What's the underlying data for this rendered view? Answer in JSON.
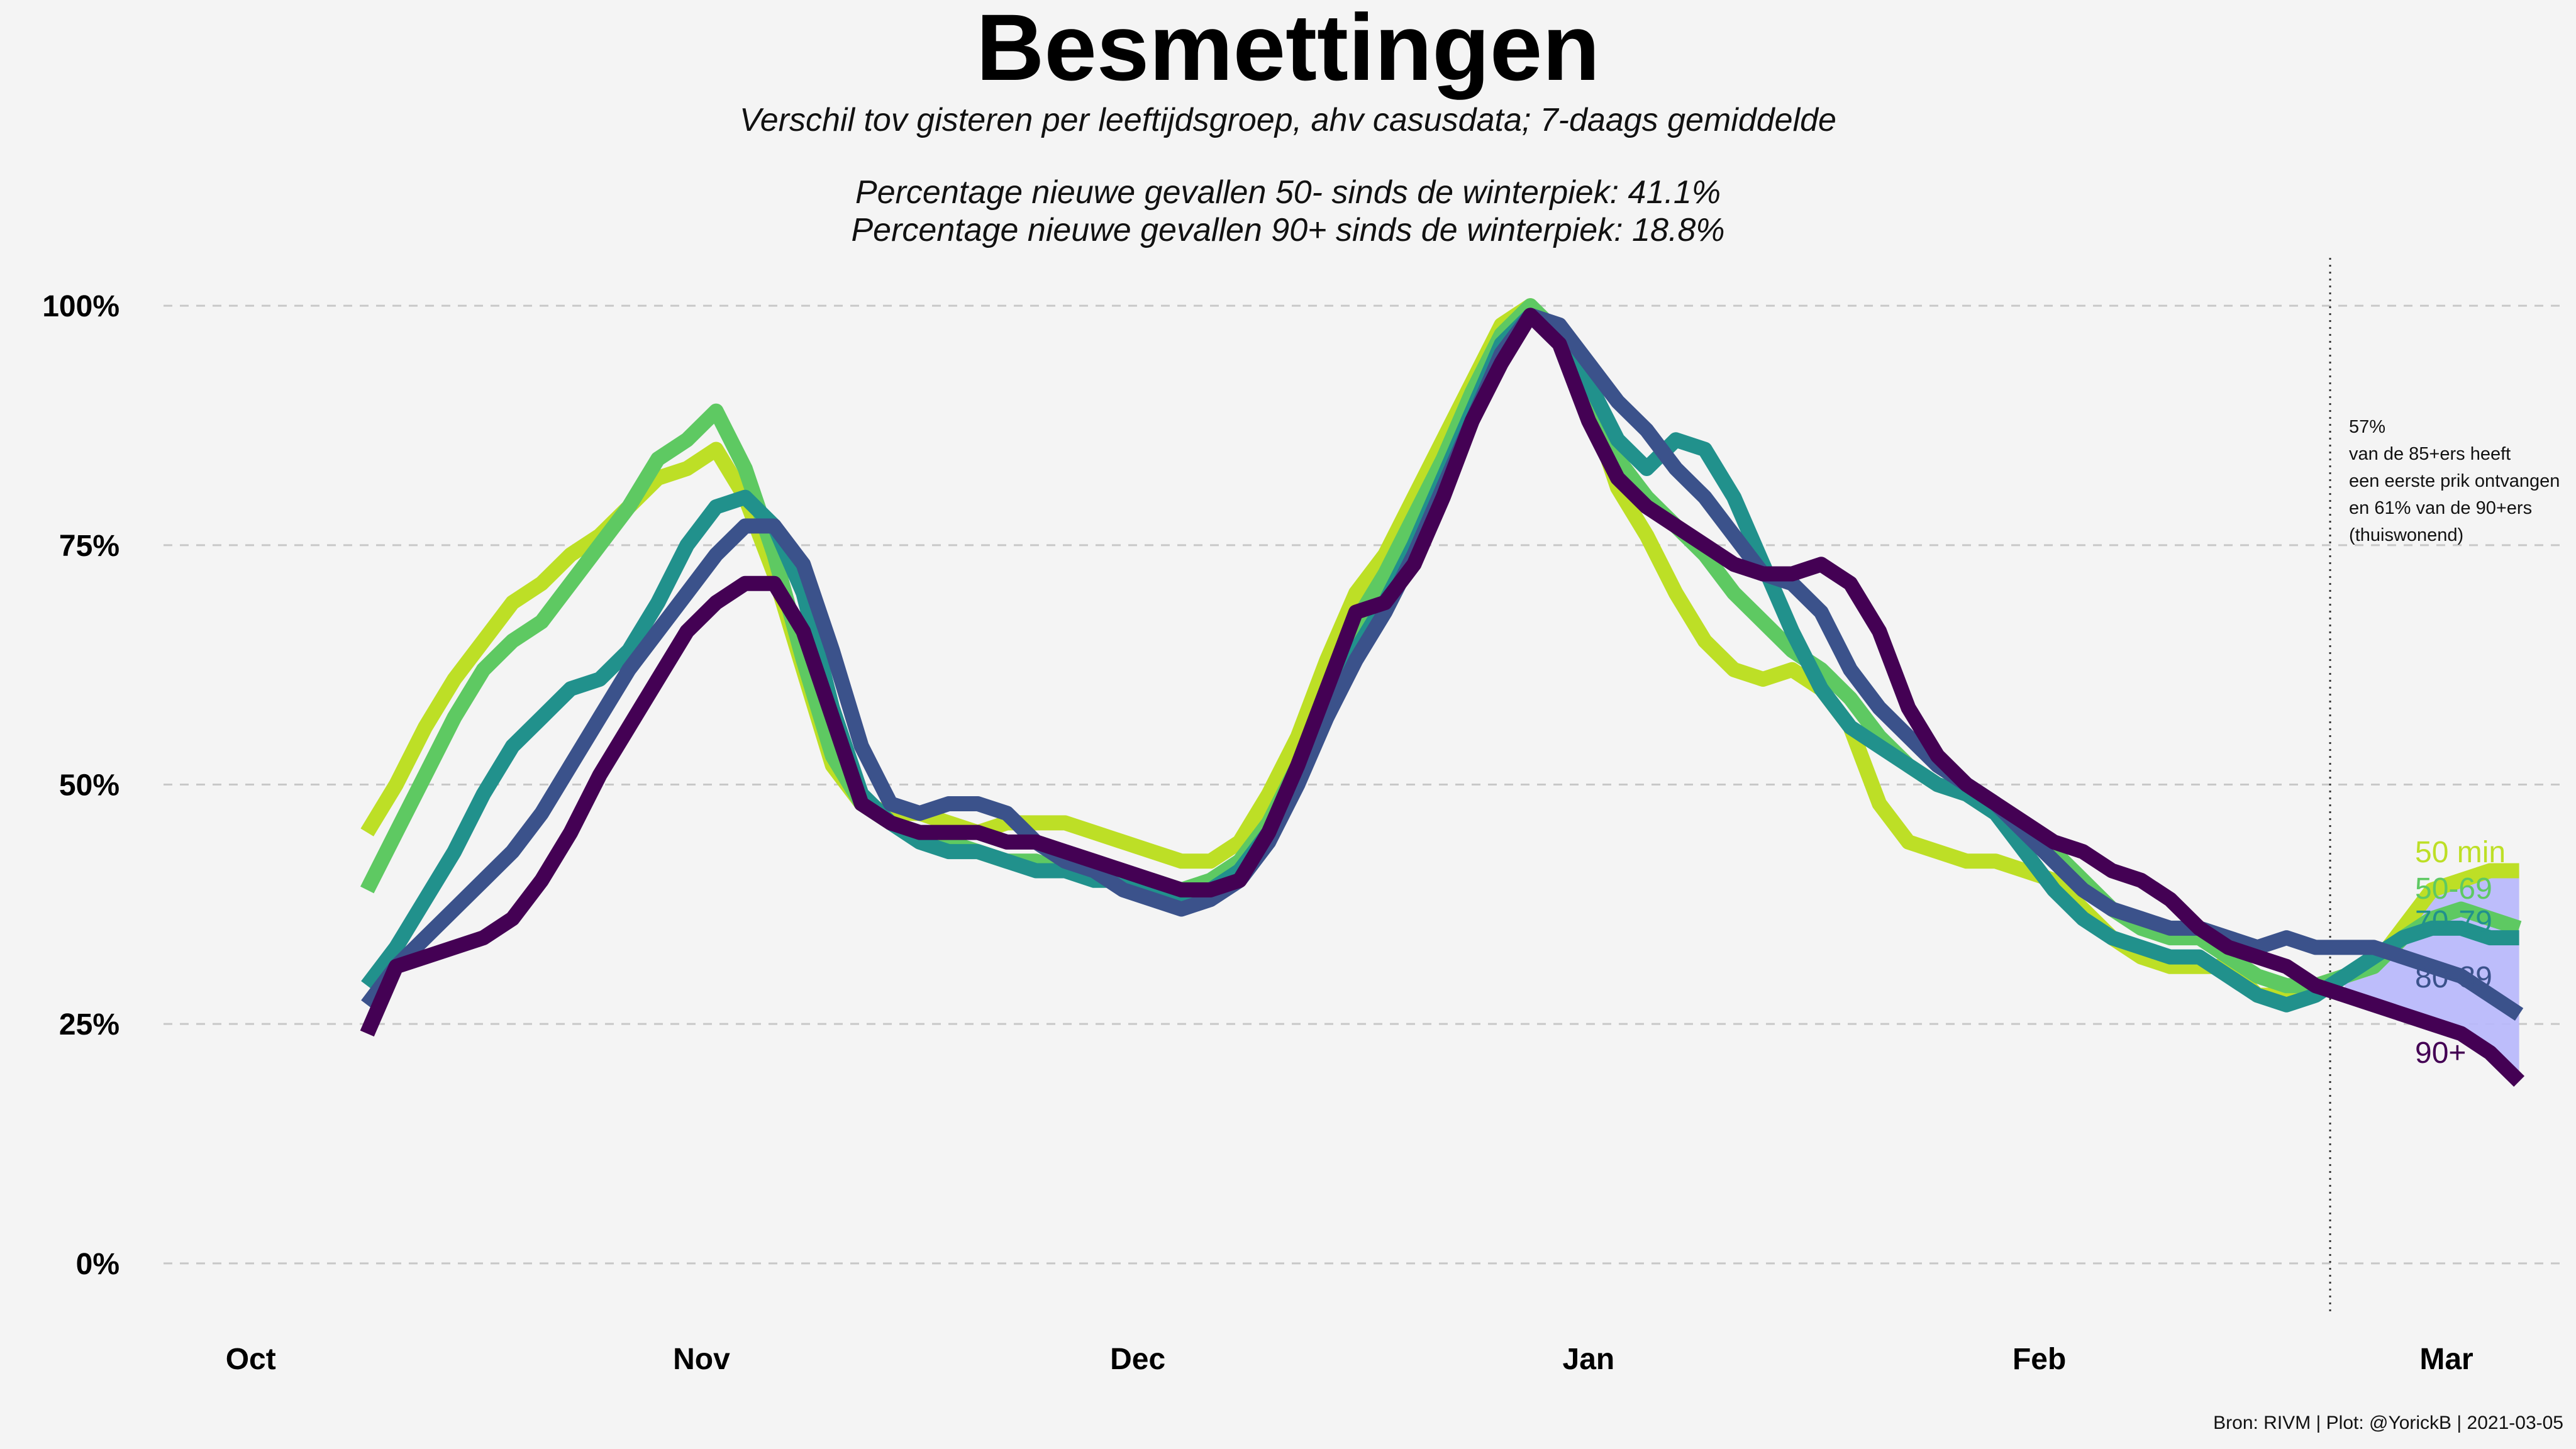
{
  "title": "Besmettingen",
  "subtitle": "Verschil tov gisteren per leeftijdsgroep, ahv casusdata; 7-daags gemiddelde",
  "lines": [
    "Percentage nieuwe gevallen 50- sinds de winterpiek: 41.1%",
    "Percentage nieuwe gevallen 90+ sinds de winterpiek: 18.8%"
  ],
  "caption": "Bron: RIVM | Plot: @YorickB  |  2021-03-05",
  "annotation": [
    "57%",
    "van de 85+ers heeft",
    "een eerste prik ontvangen",
    "en 61% van de 90+ers",
    "(thuiswonend)"
  ],
  "chart_data": {
    "type": "line",
    "title": "Besmettingen",
    "xlabel": "",
    "ylabel": "",
    "x_unit": "days since 2020-10-01",
    "xlim": [
      -6,
      159
    ],
    "ylim": [
      -5,
      105
    ],
    "y_ticks": [
      0,
      25,
      50,
      75,
      100
    ],
    "y_tick_labels": [
      "0%",
      "25%",
      "50%",
      "75%",
      "100%"
    ],
    "x_ticks": [
      0,
      31,
      61,
      92,
      123,
      151
    ],
    "x_tick_labels": [
      "Oct",
      "Nov",
      "Dec",
      "Jan",
      "Feb",
      "Mar"
    ],
    "vline_x": 143,
    "series": [
      {
        "name": "50 min",
        "color": "#bddf26",
        "x": [
          8,
          10,
          12,
          14,
          16,
          18,
          20,
          22,
          24,
          26,
          28,
          30,
          32,
          34,
          36,
          38,
          40,
          42,
          44,
          46,
          48,
          50,
          52,
          54,
          56,
          58,
          60,
          62,
          64,
          66,
          68,
          70,
          72,
          74,
          76,
          78,
          80,
          82,
          84,
          86,
          88,
          90,
          92,
          94,
          96,
          98,
          100,
          102,
          104,
          106,
          108,
          110,
          112,
          114,
          116,
          118,
          120,
          122,
          124,
          126,
          128,
          130,
          132,
          134,
          136,
          138,
          140,
          142,
          144,
          146,
          148,
          150,
          152,
          154,
          156
        ],
        "y": [
          45,
          50,
          56,
          61,
          65,
          69,
          71,
          74,
          76,
          79,
          82,
          83,
          85,
          80,
          72,
          62,
          52,
          48,
          47,
          47,
          46,
          45,
          46,
          46,
          46,
          45,
          44,
          43,
          42,
          42,
          44,
          49,
          55,
          63,
          70,
          74,
          80,
          86,
          92,
          98,
          100,
          96,
          90,
          81,
          76,
          70,
          65,
          62,
          61,
          62,
          60,
          56,
          48,
          44,
          43,
          42,
          42,
          41,
          40,
          37,
          34,
          32,
          31,
          31,
          31,
          28,
          28,
          29,
          30,
          31,
          35,
          39,
          40,
          41,
          41
        ]
      },
      {
        "name": "50-69",
        "color": "#5ec962",
        "x": [
          8,
          10,
          12,
          14,
          16,
          18,
          20,
          22,
          24,
          26,
          28,
          30,
          32,
          34,
          36,
          38,
          40,
          42,
          44,
          46,
          48,
          50,
          52,
          54,
          56,
          58,
          60,
          62,
          64,
          66,
          68,
          70,
          72,
          74,
          76,
          78,
          80,
          82,
          84,
          86,
          88,
          90,
          92,
          94,
          96,
          98,
          100,
          102,
          104,
          106,
          108,
          110,
          112,
          114,
          116,
          118,
          120,
          122,
          124,
          126,
          128,
          130,
          132,
          134,
          136,
          138,
          140,
          142,
          144,
          146,
          148,
          150,
          152,
          154,
          156
        ],
        "y": [
          39,
          45,
          51,
          57,
          62,
          65,
          67,
          71,
          75,
          79,
          84,
          86,
          89,
          83,
          74,
          63,
          53,
          48,
          46,
          45,
          44,
          43,
          42,
          42,
          41,
          41,
          40,
          40,
          39,
          40,
          42,
          46,
          52,
          60,
          67,
          72,
          78,
          84,
          91,
          97,
          100,
          97,
          91,
          84,
          80,
          77,
          74,
          70,
          67,
          64,
          62,
          59,
          55,
          52,
          50,
          49,
          47,
          45,
          43,
          40,
          37,
          35,
          34,
          34,
          32,
          30,
          29,
          29,
          30,
          31,
          34,
          36,
          37,
          36,
          35
        ]
      },
      {
        "name": "70-79",
        "color": "#21918c",
        "x": [
          8,
          10,
          12,
          14,
          16,
          18,
          20,
          22,
          24,
          26,
          28,
          30,
          32,
          34,
          36,
          38,
          40,
          42,
          44,
          46,
          48,
          50,
          52,
          54,
          56,
          58,
          60,
          62,
          64,
          66,
          68,
          70,
          72,
          74,
          76,
          78,
          80,
          82,
          84,
          86,
          88,
          90,
          92,
          94,
          96,
          98,
          100,
          102,
          104,
          106,
          108,
          110,
          112,
          114,
          116,
          118,
          120,
          122,
          124,
          126,
          128,
          130,
          132,
          134,
          136,
          138,
          140,
          142,
          144,
          146,
          148,
          150,
          152,
          154,
          156
        ],
        "y": [
          29,
          33,
          38,
          43,
          49,
          54,
          57,
          60,
          61,
          64,
          69,
          75,
          79,
          80,
          77,
          70,
          58,
          49,
          46,
          44,
          43,
          43,
          42,
          41,
          41,
          40,
          40,
          39,
          38,
          39,
          41,
          45,
          51,
          58,
          64,
          69,
          75,
          82,
          89,
          96,
          99,
          97,
          92,
          86,
          83,
          86,
          85,
          80,
          73,
          66,
          60,
          56,
          54,
          52,
          50,
          49,
          47,
          43,
          39,
          36,
          34,
          33,
          32,
          32,
          30,
          28,
          27,
          28,
          30,
          32,
          34,
          35,
          35,
          34,
          34
        ]
      },
      {
        "name": "80-89",
        "color": "#3b528b",
        "x": [
          8,
          10,
          12,
          14,
          16,
          18,
          20,
          22,
          24,
          26,
          28,
          30,
          32,
          34,
          36,
          38,
          40,
          42,
          44,
          46,
          48,
          50,
          52,
          54,
          56,
          58,
          60,
          62,
          64,
          66,
          68,
          70,
          72,
          74,
          76,
          78,
          80,
          82,
          84,
          86,
          88,
          90,
          92,
          94,
          96,
          98,
          100,
          102,
          104,
          106,
          108,
          110,
          112,
          114,
          116,
          118,
          120,
          122,
          124,
          126,
          128,
          130,
          132,
          134,
          136,
          138,
          140,
          142,
          144,
          146,
          148,
          150,
          152,
          154,
          156
        ],
        "y": [
          27,
          31,
          34,
          37,
          40,
          43,
          47,
          52,
          57,
          62,
          66,
          70,
          74,
          77,
          77,
          73,
          64,
          54,
          48,
          47,
          48,
          48,
          47,
          44,
          42,
          41,
          39,
          38,
          37,
          38,
          40,
          44,
          50,
          57,
          63,
          68,
          74,
          81,
          88,
          95,
          99,
          98,
          94,
          90,
          87,
          83,
          80,
          76,
          72,
          71,
          68,
          62,
          58,
          55,
          52,
          50,
          48,
          45,
          42,
          39,
          37,
          36,
          35,
          35,
          34,
          33,
          34,
          33,
          33,
          33,
          32,
          31,
          30,
          28,
          26
        ]
      },
      {
        "name": "90+",
        "color": "#440154",
        "x": [
          8,
          10,
          12,
          14,
          16,
          18,
          20,
          22,
          24,
          26,
          28,
          30,
          32,
          34,
          36,
          38,
          40,
          42,
          44,
          46,
          48,
          50,
          52,
          54,
          56,
          58,
          60,
          62,
          64,
          66,
          68,
          70,
          72,
          74,
          76,
          78,
          80,
          82,
          84,
          86,
          88,
          90,
          92,
          94,
          96,
          98,
          100,
          102,
          104,
          106,
          108,
          110,
          112,
          114,
          116,
          118,
          120,
          122,
          124,
          126,
          128,
          130,
          132,
          134,
          136,
          138,
          140,
          142,
          144,
          146,
          148,
          150,
          152,
          154,
          156
        ],
        "y": [
          24,
          31,
          32,
          33,
          34,
          36,
          40,
          45,
          51,
          56,
          61,
          66,
          69,
          71,
          71,
          66,
          57,
          48,
          46,
          45,
          45,
          45,
          44,
          44,
          43,
          42,
          41,
          40,
          39,
          39,
          40,
          45,
          52,
          60,
          68,
          69,
          73,
          80,
          88,
          94,
          99,
          96,
          88,
          82,
          79,
          77,
          75,
          73,
          72,
          72,
          73,
          71,
          66,
          58,
          53,
          50,
          48,
          46,
          44,
          43,
          41,
          40,
          38,
          35,
          33,
          32,
          31,
          29,
          28,
          27,
          26,
          25,
          24,
          22,
          19
        ]
      }
    ]
  }
}
